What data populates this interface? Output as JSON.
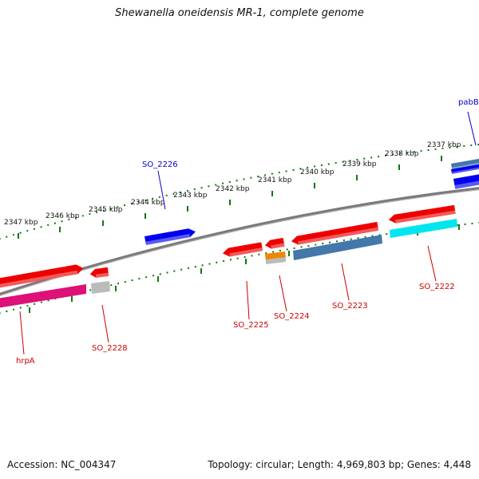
{
  "title": "Shewanella oneidensis MR-1, complete genome",
  "footer": {
    "accession": "Accession: NC_004347",
    "topology": "Topology: circular; Length: 4,969,803 bp; Genes: 4,448"
  },
  "ticks": [
    "2347 kbp",
    "2346 kbp",
    "2345 kbp",
    "2344 kbp",
    "2343 kbp",
    "2342 kbp",
    "2341 kbp",
    "2340 kbp",
    "2339 kbp",
    "2338 kbp",
    "2337 kbp"
  ],
  "genes": [
    {
      "label": "pabB",
      "color": "#0000cc"
    },
    {
      "label": "SO_2226",
      "color": "#0000cc"
    },
    {
      "label": "SO_2222",
      "color": "#cc0000"
    },
    {
      "label": "SO_2223",
      "color": "#cc0000"
    },
    {
      "label": "SO_2224",
      "color": "#cc0000"
    },
    {
      "label": "SO_2225",
      "color": "#cc0000"
    },
    {
      "label": "SO_2228",
      "color": "#cc0000"
    },
    {
      "label": "hrpA",
      "color": "#cc0000"
    }
  ],
  "colors": {
    "red": "#ee0000",
    "blue": "#0000ee",
    "steelblue": "#4477aa",
    "cyan": "#00e5ee",
    "magenta": "#dd1177",
    "orange": "#ee8800",
    "gray": "#bbbbbb",
    "backbone": "#808080",
    "tick": "#117711"
  }
}
